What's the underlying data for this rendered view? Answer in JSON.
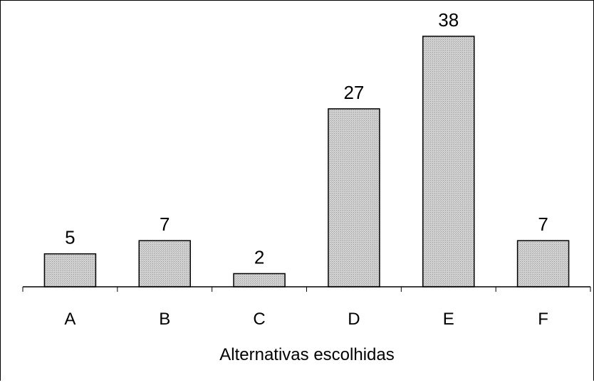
{
  "chart_data": {
    "type": "bar",
    "title": "",
    "xlabel": "Alternativas escolhidas",
    "ylabel": "",
    "categories": [
      "A",
      "B",
      "C",
      "D",
      "E",
      "F"
    ],
    "values": [
      5,
      7,
      2,
      27,
      38,
      7
    ],
    "ylim": [
      0,
      38
    ],
    "grid": false,
    "legend": "none",
    "bar_fill": "#c8c8c8",
    "bar_stroke": "#000000"
  }
}
